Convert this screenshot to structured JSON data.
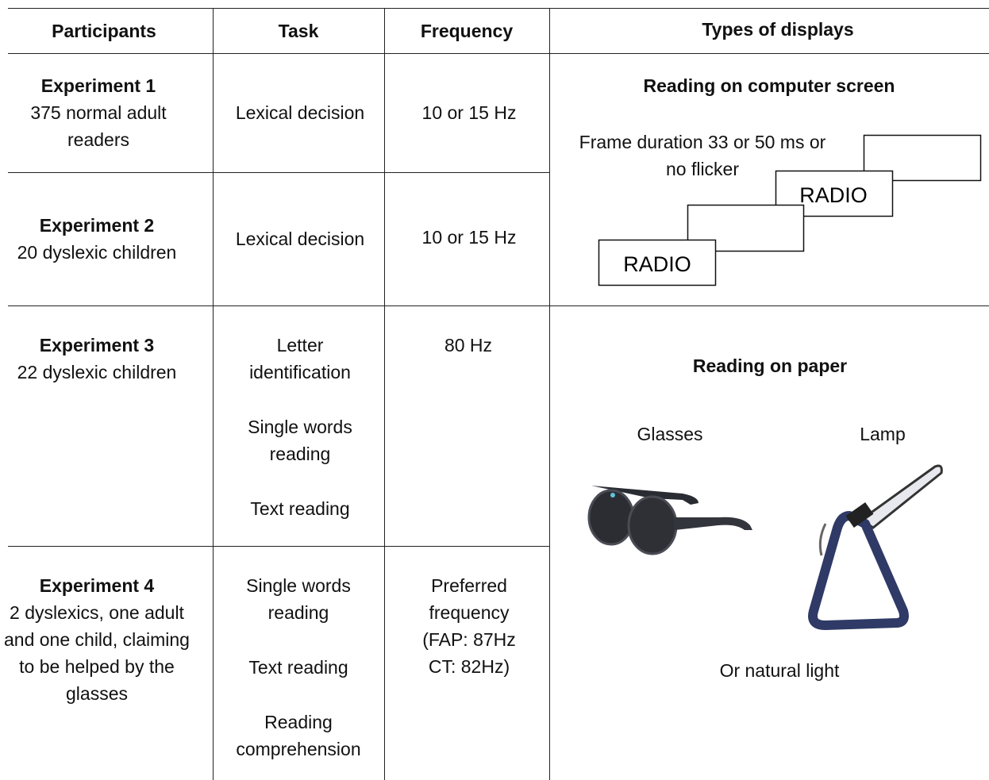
{
  "table": {
    "headers": [
      "Participants",
      "Task",
      "Frequency",
      "Types of displays"
    ],
    "rows": [
      {
        "experiment": "Experiment 1",
        "participants": "375 normal adult readers",
        "tasks": [
          "Lexical decision"
        ],
        "frequency": "10 or 15 Hz"
      },
      {
        "experiment": "Experiment 2",
        "participants": "20 dyslexic children",
        "tasks": [
          "Lexical decision"
        ],
        "frequency": "10 or 15 Hz"
      },
      {
        "experiment": "Experiment 3",
        "participants": "22 dyslexic children",
        "tasks": [
          "Letter identification",
          "Single words reading",
          "Text reading"
        ],
        "frequency": "80 Hz"
      },
      {
        "experiment": "Experiment 4",
        "participants": "2 dyslexics, one adult and one child, claiming to be helped by the glasses",
        "tasks": [
          "Single words reading",
          "Text reading",
          "Reading comprehension"
        ],
        "frequency": "Preferred frequency (FAP:  87Hz CT: 82Hz)"
      }
    ]
  },
  "displays": {
    "screen": {
      "title": "Reading on computer screen",
      "frame_duration": "Frame duration 33 or 50 ms or no flicker",
      "stimuli": [
        "RADIO",
        "RADIO"
      ]
    },
    "paper": {
      "title": "Reading on paper",
      "devices": [
        "Glasses",
        "Lamp"
      ],
      "alternative": "Or natural light"
    }
  }
}
